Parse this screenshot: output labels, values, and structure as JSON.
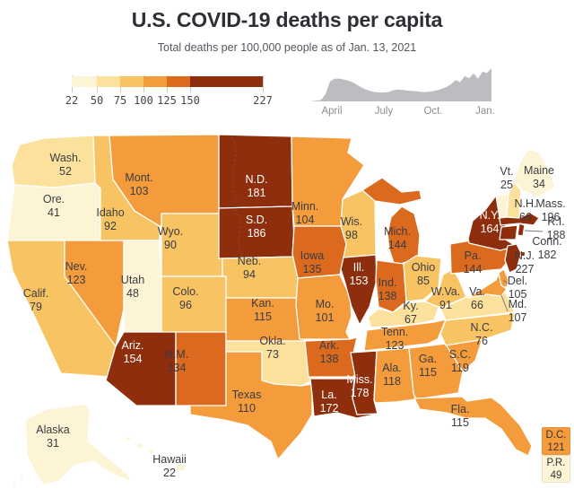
{
  "header": {
    "title": "U.S. COVID-19 deaths per capita",
    "subtitle": "Total deaths per 100,000 people as of Jan. 13, 2021"
  },
  "chart_data": [
    {
      "type": "choropleth",
      "title": "U.S. COVID-19 deaths per capita",
      "subtitle": "Total deaths per 100,000 people as of Jan. 13, 2021",
      "unit": "total deaths per 100,000 people",
      "as_of": "Jan. 13, 2021",
      "color_scale": {
        "breaks": [
          22,
          50,
          75,
          100,
          125,
          150,
          227
        ],
        "colors": [
          "#FDF4D5",
          "#FBE19B",
          "#F8C463",
          "#F49C3B",
          "#DB6A1E",
          "#8F2E0D"
        ]
      },
      "states": [
        {
          "abbr": "WA",
          "label": "Wash.",
          "value": 52
        },
        {
          "abbr": "OR",
          "label": "Ore.",
          "value": 41
        },
        {
          "abbr": "CA",
          "label": "Calif.",
          "value": 79
        },
        {
          "abbr": "NV",
          "label": "Nev.",
          "value": 123
        },
        {
          "abbr": "ID",
          "label": "Idaho",
          "value": 92
        },
        {
          "abbr": "MT",
          "label": "Mont.",
          "value": 103
        },
        {
          "abbr": "WY",
          "label": "Wyo.",
          "value": 90
        },
        {
          "abbr": "UT",
          "label": "Utah",
          "value": 48
        },
        {
          "abbr": "CO",
          "label": "Colo.",
          "value": 96
        },
        {
          "abbr": "AZ",
          "label": "Ariz.",
          "value": 154
        },
        {
          "abbr": "NM",
          "label": "N.M.",
          "value": 134
        },
        {
          "abbr": "ND",
          "label": "N.D.",
          "value": 181
        },
        {
          "abbr": "SD",
          "label": "S.D.",
          "value": 186
        },
        {
          "abbr": "NE",
          "label": "Neb.",
          "value": 94
        },
        {
          "abbr": "KS",
          "label": "Kan.",
          "value": 115
        },
        {
          "abbr": "OK",
          "label": "Okla.",
          "value": 73
        },
        {
          "abbr": "TX",
          "label": "Texas",
          "value": 110
        },
        {
          "abbr": "MN",
          "label": "Minn.",
          "value": 104
        },
        {
          "abbr": "IA",
          "label": "Iowa",
          "value": 135
        },
        {
          "abbr": "MO",
          "label": "Mo.",
          "value": 101
        },
        {
          "abbr": "AR",
          "label": "Ark.",
          "value": 138
        },
        {
          "abbr": "LA",
          "label": "La.",
          "value": 172
        },
        {
          "abbr": "WI",
          "label": "Wis.",
          "value": 98
        },
        {
          "abbr": "IL",
          "label": "Ill.",
          "value": 153
        },
        {
          "abbr": "MS",
          "label": "Miss.",
          "value": 178
        },
        {
          "abbr": "MI",
          "label": "Mich.",
          "value": 144
        },
        {
          "abbr": "IN",
          "label": "Ind.",
          "value": 138
        },
        {
          "abbr": "OH",
          "label": "Ohio",
          "value": 85
        },
        {
          "abbr": "KY",
          "label": "Ky.",
          "value": 67
        },
        {
          "abbr": "TN",
          "label": "Tenn.",
          "value": 123
        },
        {
          "abbr": "AL",
          "label": "Ala.",
          "value": 118
        },
        {
          "abbr": "GA",
          "label": "Ga.",
          "value": 115
        },
        {
          "abbr": "FL",
          "label": "Fla.",
          "value": 115
        },
        {
          "abbr": "SC",
          "label": "S.C.",
          "value": 119
        },
        {
          "abbr": "NC",
          "label": "N.C.",
          "value": 76
        },
        {
          "abbr": "VA",
          "label": "Va.",
          "value": 66
        },
        {
          "abbr": "WV",
          "label": "W.Va.",
          "value": 91
        },
        {
          "abbr": "PA",
          "label": "Pa.",
          "value": 144
        },
        {
          "abbr": "NY",
          "label": "N.Y.",
          "value": 164
        },
        {
          "abbr": "NJ",
          "label": "N.J.",
          "value": 227
        },
        {
          "abbr": "CT",
          "label": "Conn.",
          "value": 182
        },
        {
          "abbr": "RI",
          "label": "R.I.",
          "value": 188
        },
        {
          "abbr": "MA",
          "label": "Mass.",
          "value": 196
        },
        {
          "abbr": "VT",
          "label": "Vt.",
          "value": 25
        },
        {
          "abbr": "NH",
          "label": "N.H.",
          "value": 66
        },
        {
          "abbr": "ME",
          "label": "Maine",
          "value": 34
        },
        {
          "abbr": "DE",
          "label": "Del.",
          "value": 105
        },
        {
          "abbr": "MD",
          "label": "Md.",
          "value": 107
        },
        {
          "abbr": "AK",
          "label": "Alaska",
          "value": 31
        },
        {
          "abbr": "HI",
          "label": "Hawaii",
          "value": 22
        },
        {
          "abbr": "DC",
          "label": "D.C.",
          "value": 121
        },
        {
          "abbr": "PR",
          "label": "P.R.",
          "value": 49
        }
      ]
    },
    {
      "type": "area",
      "title": "Daily deaths timeline (inset sparkline)",
      "x_ticks": [
        "April",
        "July",
        "Oct.",
        "Jan."
      ],
      "values_relative": [
        0.01,
        0.02,
        0.05,
        0.22,
        0.6,
        0.68,
        0.69,
        0.66,
        0.63,
        0.58,
        0.5,
        0.42,
        0.36,
        0.31,
        0.28,
        0.27,
        0.27,
        0.28,
        0.33,
        0.36,
        0.35,
        0.33,
        0.32,
        0.31,
        0.29,
        0.28,
        0.29,
        0.31,
        0.34,
        0.38,
        0.44,
        0.52,
        0.64,
        0.58,
        0.76,
        0.7,
        0.84,
        0.68,
        0.9,
        0.86,
        1.0
      ],
      "color": "#BDBDC1"
    }
  ]
}
